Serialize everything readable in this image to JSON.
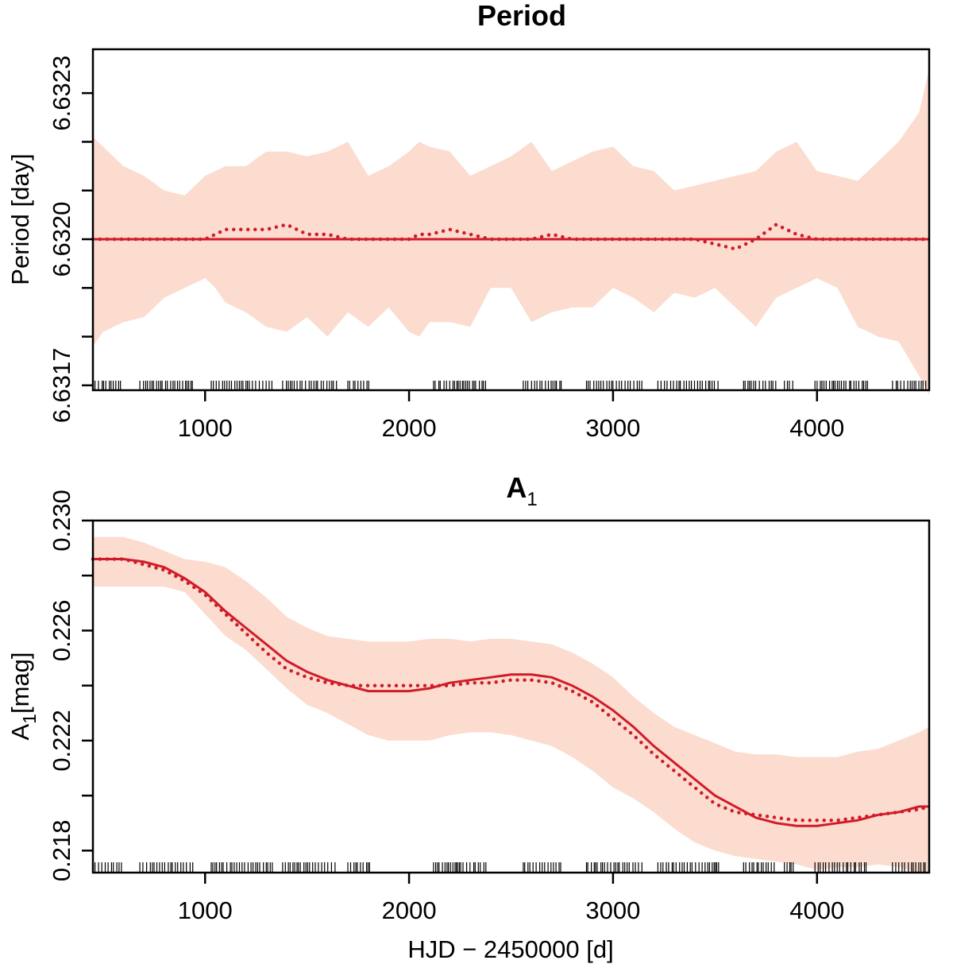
{
  "chart_data": [
    {
      "type": "line",
      "title": "Period",
      "xlabel": "",
      "ylabel": "Period [day]",
      "xlim": [
        450,
        4550
      ],
      "ylim": [
        6.63169,
        6.63239
      ],
      "xticks": [
        1000,
        2000,
        3000,
        4000
      ],
      "xtick_labels": [
        "1000",
        "2000",
        "3000",
        "4000"
      ],
      "yticks": [
        6.6317,
        6.6318,
        6.6319,
        6.632,
        6.6321,
        6.6322,
        6.6323
      ],
      "ytick_labels": [
        {
          "v": 6.6317,
          "text": "6.6317"
        },
        {
          "v": 6.632,
          "text": "6.6320"
        },
        {
          "v": 6.6323,
          "text": "6.6323"
        }
      ],
      "x": [
        450,
        500,
        600,
        700,
        800,
        900,
        1000,
        1050,
        1100,
        1200,
        1300,
        1400,
        1500,
        1600,
        1700,
        1800,
        1900,
        2000,
        2050,
        2100,
        2200,
        2300,
        2400,
        2500,
        2600,
        2700,
        2800,
        2900,
        3000,
        3100,
        3200,
        3300,
        3400,
        3500,
        3600,
        3700,
        3800,
        3900,
        4000,
        4100,
        4200,
        4300,
        4400,
        4500,
        4550
      ],
      "band_upper": [
        6.63221,
        6.63219,
        6.63215,
        6.63213,
        6.6321,
        6.63209,
        6.63213,
        6.63214,
        6.63215,
        6.63215,
        6.63218,
        6.63218,
        6.63217,
        6.63218,
        6.6322,
        6.63213,
        6.63215,
        6.63218,
        6.6322,
        6.63219,
        6.63218,
        6.63213,
        6.63215,
        6.63217,
        6.6322,
        6.63214,
        6.63216,
        6.63218,
        6.63219,
        6.63215,
        6.63214,
        6.6321,
        6.63211,
        6.63212,
        6.63213,
        6.63214,
        6.63218,
        6.6322,
        6.63214,
        6.63213,
        6.63212,
        6.63216,
        6.6322,
        6.63226,
        6.63235
      ],
      "band_lower": [
        6.63178,
        6.63181,
        6.63183,
        6.63184,
        6.63188,
        6.6319,
        6.63192,
        6.6319,
        6.63187,
        6.63185,
        6.63182,
        6.63181,
        6.63184,
        6.6318,
        6.63185,
        6.63182,
        6.63186,
        6.63181,
        6.6318,
        6.63183,
        6.63183,
        6.63182,
        6.6319,
        6.6319,
        6.63183,
        6.63185,
        6.63186,
        6.63186,
        6.6319,
        6.63188,
        6.63185,
        6.63189,
        6.63188,
        6.6319,
        6.63186,
        6.63182,
        6.63188,
        6.6319,
        6.63192,
        6.6319,
        6.63182,
        6.6318,
        6.63179,
        6.63172,
        6.63168
      ],
      "series": [
        {
          "name": "fit",
          "style": "solid",
          "values": [
            6.632,
            6.632,
            6.632,
            6.632,
            6.632,
            6.632,
            6.632,
            6.632,
            6.632,
            6.632,
            6.632,
            6.632,
            6.632,
            6.632,
            6.632,
            6.632,
            6.632,
            6.632,
            6.632,
            6.632,
            6.632,
            6.632,
            6.632,
            6.632,
            6.632,
            6.632,
            6.632,
            6.632,
            6.632,
            6.632,
            6.632,
            6.632,
            6.632,
            6.632,
            6.632,
            6.632,
            6.632,
            6.632,
            6.632,
            6.632,
            6.632,
            6.632,
            6.632,
            6.632,
            6.632
          ]
        },
        {
          "name": "estimate",
          "style": "dotted",
          "values": [
            6.632,
            6.632,
            6.632,
            6.632,
            6.632,
            6.632,
            6.632,
            6.63201,
            6.63202,
            6.63202,
            6.63202,
            6.63203,
            6.63201,
            6.63201,
            6.632,
            6.632,
            6.632,
            6.632,
            6.63201,
            6.63201,
            6.63202,
            6.63201,
            6.632,
            6.632,
            6.632,
            6.63201,
            6.632,
            6.632,
            6.632,
            6.632,
            6.632,
            6.632,
            6.632,
            6.63199,
            6.63198,
            6.632,
            6.63203,
            6.63201,
            6.632,
            6.632,
            6.632,
            6.632,
            6.632,
            6.632,
            6.632
          ]
        }
      ],
      "observation_ranges": [
        [
          460,
          590
        ],
        [
          680,
          950
        ],
        [
          1030,
          1340
        ],
        [
          1380,
          1650
        ],
        [
          1700,
          1810
        ],
        [
          2120,
          2380
        ],
        [
          2560,
          2750
        ],
        [
          2870,
          3150
        ],
        [
          3220,
          3520
        ],
        [
          3640,
          3800
        ],
        [
          3840,
          3890
        ],
        [
          3990,
          4250
        ],
        [
          4370,
          4540
        ]
      ]
    },
    {
      "type": "line",
      "title": "A1",
      "title_main": "A",
      "title_sub": "1",
      "xlabel": "HJD − 2450000 [d]",
      "ylabel": "A1[mag]",
      "ylabel_main": "A",
      "ylabel_sub": "1",
      "ylabel_rest": "[mag]",
      "xlim": [
        450,
        4550
      ],
      "ylim": [
        0.2172,
        0.23
      ],
      "xticks": [
        1000,
        2000,
        3000,
        4000
      ],
      "xtick_labels": [
        "1000",
        "2000",
        "3000",
        "4000"
      ],
      "yticks": [
        0.218,
        0.22,
        0.222,
        0.224,
        0.226,
        0.228,
        0.23
      ],
      "ytick_labels": [
        {
          "v": 0.218,
          "text": "0.218"
        },
        {
          "v": 0.222,
          "text": "0.222"
        },
        {
          "v": 0.226,
          "text": "0.226"
        },
        {
          "v": 0.23,
          "text": "0.230"
        }
      ],
      "x": [
        450,
        600,
        700,
        800,
        900,
        1000,
        1100,
        1200,
        1300,
        1400,
        1500,
        1600,
        1700,
        1800,
        1900,
        2000,
        2100,
        2200,
        2300,
        2400,
        2500,
        2600,
        2700,
        2800,
        2900,
        3000,
        3100,
        3200,
        3300,
        3400,
        3500,
        3600,
        3700,
        3800,
        3900,
        4000,
        4100,
        4200,
        4300,
        4400,
        4500,
        4550
      ],
      "band_upper": [
        0.2294,
        0.2294,
        0.2292,
        0.2289,
        0.2286,
        0.2285,
        0.2283,
        0.2278,
        0.2272,
        0.2265,
        0.2261,
        0.2258,
        0.2257,
        0.2256,
        0.2256,
        0.2256,
        0.2257,
        0.2257,
        0.2256,
        0.2257,
        0.2257,
        0.2256,
        0.2255,
        0.2252,
        0.2248,
        0.2243,
        0.2236,
        0.223,
        0.2225,
        0.2222,
        0.2219,
        0.2216,
        0.2215,
        0.2215,
        0.2214,
        0.2214,
        0.2214,
        0.2216,
        0.2217,
        0.222,
        0.2223,
        0.2225
      ],
      "band_lower": [
        0.2276,
        0.2276,
        0.2276,
        0.2276,
        0.2274,
        0.2266,
        0.2258,
        0.2253,
        0.2246,
        0.2239,
        0.2233,
        0.223,
        0.2226,
        0.2222,
        0.222,
        0.222,
        0.222,
        0.2222,
        0.2223,
        0.2223,
        0.2222,
        0.222,
        0.2218,
        0.2214,
        0.2209,
        0.2203,
        0.2199,
        0.2194,
        0.2188,
        0.2183,
        0.218,
        0.2178,
        0.2177,
        0.2176,
        0.2175,
        0.2173,
        0.2174,
        0.2174,
        0.2175,
        0.2174,
        0.2172,
        0.2172
      ],
      "series": [
        {
          "name": "fit",
          "style": "solid",
          "values": [
            0.2286,
            0.2286,
            0.2285,
            0.2283,
            0.2279,
            0.2274,
            0.2267,
            0.2261,
            0.2255,
            0.2249,
            0.2245,
            0.2242,
            0.224,
            0.2238,
            0.2238,
            0.2238,
            0.2239,
            0.2241,
            0.2242,
            0.2243,
            0.2244,
            0.2244,
            0.2243,
            0.224,
            0.2236,
            0.2231,
            0.2225,
            0.2218,
            0.2212,
            0.2206,
            0.22,
            0.2196,
            0.2192,
            0.219,
            0.2189,
            0.2189,
            0.219,
            0.2191,
            0.2193,
            0.2194,
            0.2196,
            0.2196
          ]
        },
        {
          "name": "estimate",
          "style": "dotted",
          "values": [
            0.2286,
            0.2286,
            0.2284,
            0.2282,
            0.2278,
            0.2273,
            0.2266,
            0.2259,
            0.2252,
            0.2246,
            0.2243,
            0.2241,
            0.224,
            0.224,
            0.224,
            0.224,
            0.224,
            0.224,
            0.2241,
            0.2241,
            0.2242,
            0.2242,
            0.2241,
            0.2238,
            0.2234,
            0.2228,
            0.2222,
            0.2215,
            0.2209,
            0.2203,
            0.2197,
            0.2194,
            0.2193,
            0.2192,
            0.2191,
            0.2191,
            0.2191,
            0.2192,
            0.2193,
            0.2194,
            0.2195,
            0.2196
          ]
        }
      ],
      "observation_ranges": [
        [
          460,
          590
        ],
        [
          680,
          950
        ],
        [
          1030,
          1340
        ],
        [
          1380,
          1650
        ],
        [
          1700,
          1810
        ],
        [
          2120,
          2380
        ],
        [
          2560,
          2750
        ],
        [
          2870,
          3150
        ],
        [
          3220,
          3520
        ],
        [
          3640,
          3800
        ],
        [
          3840,
          3890
        ],
        [
          3990,
          4250
        ],
        [
          4370,
          4540
        ]
      ]
    }
  ],
  "colors": {
    "band": "#fbdccf",
    "line": "#d01c2a",
    "axis": "#000000"
  }
}
